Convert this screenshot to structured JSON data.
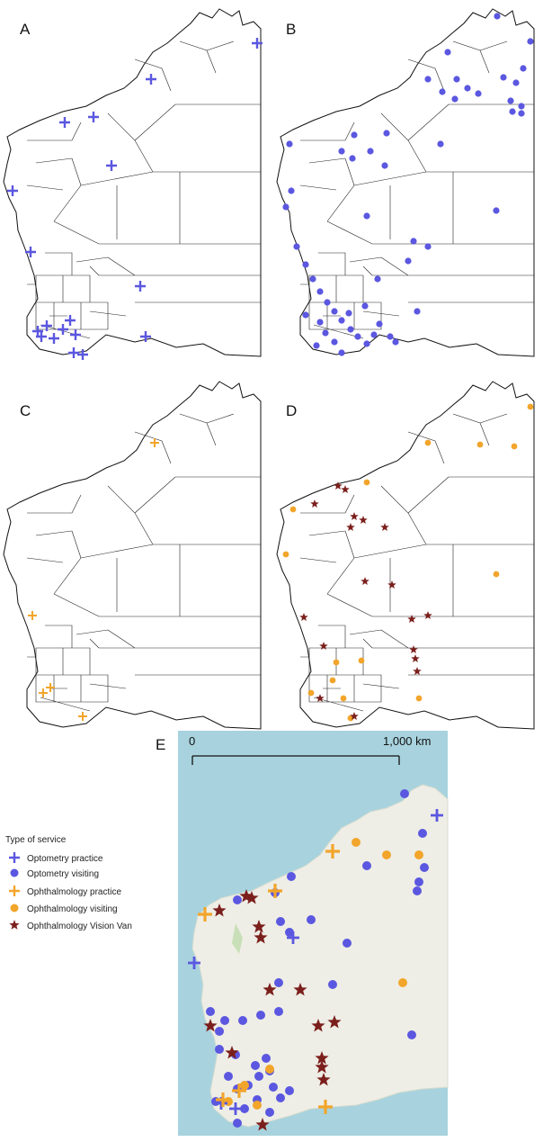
{
  "panels": [
    {
      "id": "A",
      "label": "A"
    },
    {
      "id": "B",
      "label": "B"
    },
    {
      "id": "C",
      "label": "C"
    },
    {
      "id": "D",
      "label": "D"
    },
    {
      "id": "E",
      "label": "E"
    }
  ],
  "scale_bar": {
    "start_label": "0",
    "end_label": "1,000 km"
  },
  "legend": {
    "title": "Type of service",
    "items": [
      {
        "label": "Optometry practice",
        "symbol": "plus",
        "color": "#5b57e0"
      },
      {
        "label": "Optometry visiting",
        "symbol": "circle",
        "color": "#5b57e0"
      },
      {
        "label": "Ophthalmology practice",
        "symbol": "plus",
        "color": "#f2a52b"
      },
      {
        "label": "Ophthalmology visiting",
        "symbol": "circle",
        "color": "#f2a52b"
      },
      {
        "label": "Ophthalmology Vision Van",
        "symbol": "star",
        "color": "#7b1f1c"
      }
    ]
  },
  "colors": {
    "optometry": "#5b57e0",
    "ophthalmology": "#f2a52b",
    "vision_van": "#7b1f1c",
    "ocean": "#a8d3de",
    "land": "#eeeee6"
  }
}
